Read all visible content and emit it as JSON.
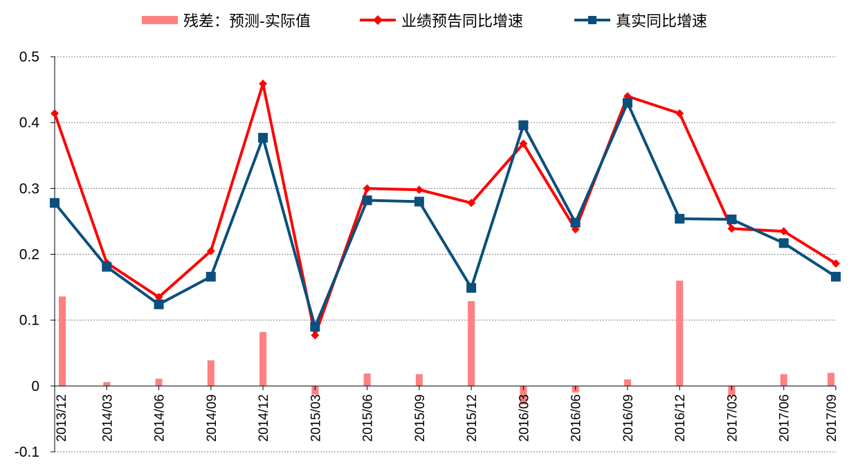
{
  "chart_data": {
    "type": "bar+line",
    "title": "",
    "xlabel": "",
    "ylabel": "",
    "ylim": [
      -0.1,
      0.5
    ],
    "yticks": [
      "0.5",
      "0.4",
      "0.3",
      "0.2",
      "0.1",
      "0",
      "-0.1"
    ],
    "ytick_values": [
      0.5,
      0.4,
      0.3,
      0.2,
      0.1,
      0,
      -0.1
    ],
    "grid": "horizontal-dotted",
    "legend_position": "top-center",
    "categories": [
      "2013/12",
      "2014/03",
      "2014/06",
      "2014/09",
      "2014/12",
      "2015/03",
      "2015/06",
      "2015/09",
      "2015/12",
      "2016/03",
      "2016/06",
      "2016/09",
      "2016/12",
      "2017/03",
      "2017/06",
      "2017/09"
    ],
    "series": [
      {
        "name": "残差：预测-实际值",
        "kind": "bar",
        "color": "#ff8080",
        "values": [
          0.136,
          0.006,
          0.011,
          0.039,
          0.082,
          -0.013,
          0.019,
          0.018,
          0.129,
          -0.028,
          -0.01,
          0.01,
          0.16,
          -0.014,
          0.018,
          0.02
        ]
      },
      {
        "name": "业绩预告同比增速",
        "kind": "line",
        "marker": "diamond",
        "color": "#ff0000",
        "values": [
          0.414,
          0.187,
          0.135,
          0.205,
          0.459,
          0.077,
          0.3,
          0.298,
          0.278,
          0.368,
          0.238,
          0.44,
          0.414,
          0.239,
          0.235,
          0.186
        ]
      },
      {
        "name": "真实同比增速",
        "kind": "line",
        "marker": "square",
        "color": "#0b4f7c",
        "values": [
          0.278,
          0.181,
          0.124,
          0.166,
          0.377,
          0.09,
          0.282,
          0.28,
          0.149,
          0.396,
          0.248,
          0.43,
          0.254,
          0.253,
          0.217,
          0.166
        ]
      }
    ]
  }
}
